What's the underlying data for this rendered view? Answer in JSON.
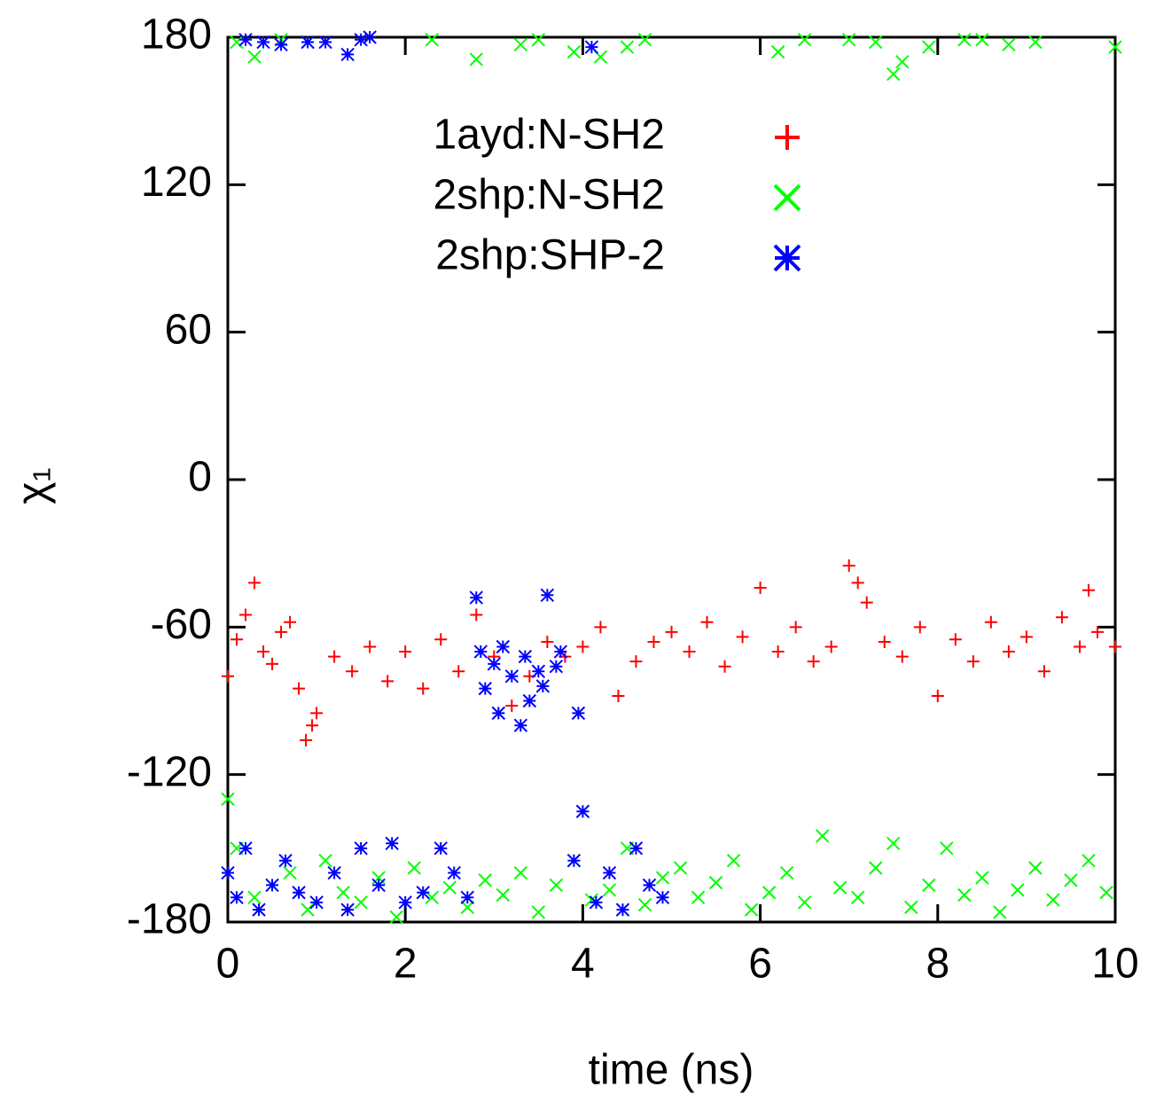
{
  "chart_data": {
    "type": "scatter",
    "xlabel": "time (ns)",
    "ylabel": "χ₁",
    "xlim": [
      0,
      10
    ],
    "xticks": [
      0,
      2,
      4,
      6,
      8,
      10
    ],
    "ylim": [
      -180,
      180
    ],
    "yticks": [
      -180,
      -120,
      -60,
      0,
      60,
      120,
      180
    ],
    "series": [
      {
        "name": "1ayd:N-SH2",
        "color": "#ff0000",
        "marker": "plus",
        "x": [
          0,
          0.1,
          0.2,
          0.3,
          0.4,
          0.5,
          0.6,
          0.7,
          0.8,
          0.88,
          0.95,
          1.0,
          1.2,
          1.4,
          1.6,
          1.8,
          2.0,
          2.2,
          2.4,
          2.6,
          2.8,
          3.0,
          3.2,
          3.4,
          3.6,
          3.8,
          4.0,
          4.2,
          4.4,
          4.6,
          4.8,
          5.0,
          5.2,
          5.4,
          5.6,
          5.8,
          6.0,
          6.2,
          6.4,
          6.6,
          6.8,
          7.0,
          7.1,
          7.2,
          7.4,
          7.6,
          7.8,
          8.0,
          8.2,
          8.4,
          8.6,
          8.8,
          9.0,
          9.2,
          9.4,
          9.6,
          9.7,
          9.8,
          10.0
        ],
        "values": [
          -80,
          -65,
          -55,
          -42,
          -70,
          -75,
          -62,
          -58,
          -85,
          -106,
          -100,
          -95,
          -72,
          -78,
          -68,
          -82,
          -70,
          -85,
          -65,
          -78,
          -55,
          -72,
          -92,
          -80,
          -66,
          -72,
          -68,
          -60,
          -88,
          -74,
          -66,
          -62,
          -70,
          -58,
          -76,
          -64,
          -44,
          -70,
          -60,
          -74,
          -68,
          -35,
          -42,
          -50,
          -66,
          -72,
          -60,
          -88,
          -65,
          -74,
          -58,
          -70,
          -64,
          -78,
          -56,
          -68,
          -45,
          -62,
          -68
        ]
      },
      {
        "name": "2shp:N-SH2",
        "color": "#00ff00",
        "marker": "cross",
        "x": [
          0,
          0.1,
          0.3,
          0.5,
          0.7,
          0.9,
          1.1,
          1.3,
          1.5,
          1.7,
          1.9,
          2.1,
          2.3,
          2.5,
          2.7,
          2.9,
          3.1,
          3.3,
          3.5,
          3.7,
          3.9,
          4.1,
          4.3,
          4.5,
          4.7,
          4.9,
          5.1,
          5.3,
          5.5,
          5.7,
          5.9,
          6.1,
          6.3,
          6.5,
          6.7,
          6.9,
          7.1,
          7.3,
          7.5,
          7.7,
          7.9,
          8.1,
          8.3,
          8.5,
          8.7,
          8.9,
          9.1,
          9.3,
          9.5,
          9.7,
          9.9,
          0.1,
          0.3,
          0.6,
          0.9,
          2.3,
          2.8,
          3.3,
          3.5,
          3.9,
          4.2,
          4.5,
          4.7,
          6.2,
          6.5,
          7.0,
          7.3,
          7.5,
          7.6,
          7.9,
          8.3,
          8.5,
          8.8,
          9.1,
          10.0
        ],
        "values": [
          -130,
          -150,
          -170,
          -165,
          -160,
          -175,
          -155,
          -168,
          -172,
          -162,
          -178,
          -158,
          -170,
          -166,
          -174,
          -163,
          -169,
          -160,
          -176,
          -165,
          -155,
          -171,
          -167,
          -150,
          -173,
          -162,
          -158,
          -170,
          -164,
          -155,
          -175,
          -168,
          -160,
          -172,
          -145,
          -166,
          -170,
          -158,
          -148,
          -174,
          -165,
          -150,
          -169,
          -162,
          -176,
          -167,
          -158,
          -171,
          -163,
          -155,
          -168,
          178,
          172,
          179,
          178,
          179,
          171,
          177,
          179,
          174,
          172,
          176,
          179,
          174,
          179,
          179,
          178,
          165,
          170,
          176,
          179,
          179,
          177,
          178,
          176
        ]
      },
      {
        "name": "2shp:SHP-2",
        "color": "#0000ff",
        "marker": "star",
        "x": [
          0,
          0.1,
          0.2,
          0.35,
          0.5,
          0.65,
          0.8,
          1.0,
          1.2,
          1.35,
          1.5,
          1.7,
          1.85,
          2.0,
          2.2,
          2.4,
          2.55,
          2.7,
          3.9,
          4.0,
          4.15,
          4.3,
          4.45,
          4.6,
          4.75,
          4.9,
          2.8,
          2.85,
          2.9,
          3.0,
          3.05,
          3.1,
          3.2,
          3.3,
          3.35,
          3.4,
          3.5,
          3.55,
          3.6,
          3.7,
          3.75,
          3.95,
          0.2,
          0.4,
          0.6,
          0.9,
          1.1,
          1.35,
          1.5,
          1.6,
          4.1
        ],
        "values": [
          -160,
          -170,
          -150,
          -175,
          -165,
          -155,
          -168,
          -172,
          -160,
          -175,
          -150,
          -165,
          -148,
          -172,
          -168,
          -150,
          -160,
          -170,
          -155,
          -135,
          -172,
          -160,
          -175,
          -150,
          -165,
          -170,
          -48,
          -70,
          -85,
          -75,
          -95,
          -68,
          -80,
          -100,
          -72,
          -90,
          -78,
          -84,
          -47,
          -76,
          -70,
          -95,
          179,
          178,
          177,
          178,
          178,
          173,
          179,
          180,
          176
        ]
      }
    ]
  }
}
